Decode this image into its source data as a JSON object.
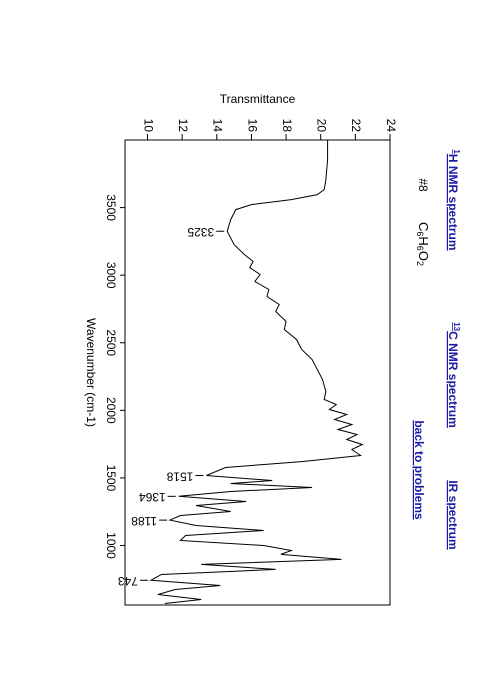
{
  "links": [
    {
      "sup": "1",
      "text": "H NMR spectrum"
    },
    {
      "sup": "13",
      "text": "C NMR spectrum"
    },
    {
      "text": "back to problems"
    },
    {
      "text": "IR spectrum"
    }
  ],
  "chart_data": {
    "type": "line",
    "title": "#8",
    "formula": [
      "C",
      "6",
      "H",
      "6",
      "O",
      "2"
    ],
    "ylabel": "Transmittance",
    "xlabel": "Wavenumber (cm-1)",
    "color": "#000000",
    "x": [
      4000,
      3855,
      3707,
      3633,
      3596,
      3559,
      3522,
      3485,
      3411,
      3325,
      3226,
      3152,
      3101,
      3056,
      3005,
      2953,
      2894,
      2842,
      2783,
      2731,
      2657,
      2598,
      2524,
      2450,
      2376,
      2302,
      2228,
      2139,
      2080,
      2043,
      2006,
      1969,
      1932,
      1895,
      1858,
      1821,
      1784,
      1747,
      1710,
      1666,
      1621,
      1577,
      1518,
      1481,
      1459,
      1429,
      1400,
      1364,
      1326,
      1296,
      1252,
      1222,
      1188,
      1148,
      1111,
      1074,
      1037,
      1000,
      963,
      934,
      897,
      860,
      823,
      786,
      743,
      704,
      675,
      638,
      601,
      571
    ],
    "values": [
      20.4,
      20.4,
      20.3,
      20.2,
      19.8,
      18.3,
      16.0,
      15.1,
      14.8,
      14.6,
      15.0,
      15.6,
      16.1,
      15.9,
      16.5,
      16.2,
      17.0,
      16.9,
      17.6,
      17.4,
      18.0,
      17.9,
      18.6,
      18.9,
      19.5,
      19.8,
      20.1,
      20.3,
      20.2,
      20.9,
      20.5,
      21.5,
      20.8,
      21.8,
      21.0,
      22.1,
      21.5,
      22.4,
      21.8,
      22.3,
      18.9,
      14.5,
      13.4,
      17.2,
      14.8,
      19.5,
      14.8,
      11.8,
      15.7,
      12.8,
      14.8,
      11.9,
      11.3,
      12.8,
      16.7,
      12.2,
      11.9,
      16.7,
      18.3,
      17.7,
      21.2,
      13.1,
      17.4,
      10.8,
      10.2,
      14.2,
      11.6,
      10.6,
      13.1,
      11.0
    ],
    "annotations": [
      {
        "x": 3325,
        "y": 14.6
      },
      {
        "x": 1518,
        "y": 13.4
      },
      {
        "x": 1364,
        "y": 11.8
      },
      {
        "x": 1188,
        "y": 11.3
      },
      {
        "x": 743,
        "y": 10.2
      }
    ],
    "xlim": [
      4000,
      560
    ],
    "xticks": [
      3500,
      3000,
      2500,
      2000,
      1500,
      1000
    ],
    "ylim": [
      8.7,
      24
    ],
    "yticks": [
      10,
      12,
      14,
      16,
      18,
      20,
      22,
      24
    ]
  }
}
